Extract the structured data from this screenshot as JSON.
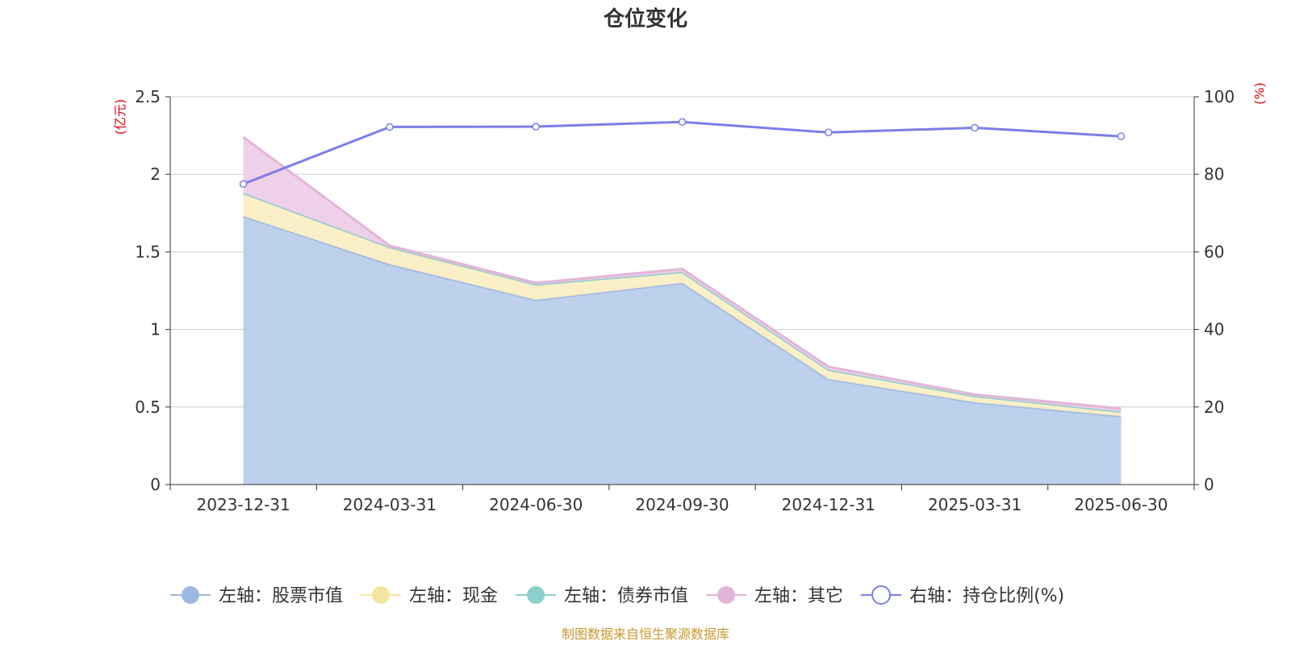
{
  "chart_data": {
    "type": "area",
    "title": "仓位变化",
    "categories": [
      "2023-12-31",
      "2024-03-31",
      "2024-06-30",
      "2024-09-30",
      "2024-12-31",
      "2025-03-31",
      "2025-06-30"
    ],
    "left_axis": {
      "unit": "(亿元)",
      "range": [
        0,
        2.5
      ],
      "ticks": [
        "0",
        "0.5",
        "1",
        "1.5",
        "2",
        "2.5"
      ],
      "tick_values": [
        0,
        0.5,
        1,
        1.5,
        2,
        2.5
      ]
    },
    "right_axis": {
      "unit": "(%)",
      "range": [
        0,
        100
      ],
      "ticks": [
        "0",
        "20",
        "40",
        "60",
        "80",
        "100"
      ],
      "tick_values": [
        0,
        20,
        40,
        60,
        80,
        100
      ]
    },
    "grid": true,
    "stacked": true,
    "legend_position": "bottom",
    "series": [
      {
        "name": "左轴：股票市值",
        "axis": "left",
        "kind": "area",
        "color": "#9db8e0",
        "fill": "#b9cdeb",
        "values": [
          1.73,
          1.42,
          1.19,
          1.3,
          0.68,
          0.53,
          0.44
        ]
      },
      {
        "name": "左轴：现金",
        "axis": "left",
        "kind": "area",
        "color": "#f5e3a0",
        "fill": "#faeec3",
        "values": [
          0.15,
          0.11,
          0.1,
          0.07,
          0.06,
          0.04,
          0.03
        ]
      },
      {
        "name": "左轴：债券市值",
        "axis": "left",
        "kind": "area",
        "color": "#8ccfcf",
        "fill": "#b5e2e2",
        "values": [
          0,
          0,
          0,
          0,
          0,
          0,
          0
        ]
      },
      {
        "name": "左轴：其它",
        "axis": "left",
        "kind": "area",
        "color": "#e3b5d8",
        "fill": "#efcde7",
        "values": [
          0.36,
          0.01,
          0.01,
          0.02,
          0.02,
          0.01,
          0.02
        ]
      },
      {
        "name": "右轴：持仓比例(%)",
        "axis": "right",
        "kind": "line",
        "color": "#7b7fe8",
        "values": [
          77.5,
          92.2,
          92.3,
          93.5,
          90.8,
          92.0,
          89.8
        ]
      }
    ],
    "source": "制图数据来自恒生聚源数据库"
  }
}
